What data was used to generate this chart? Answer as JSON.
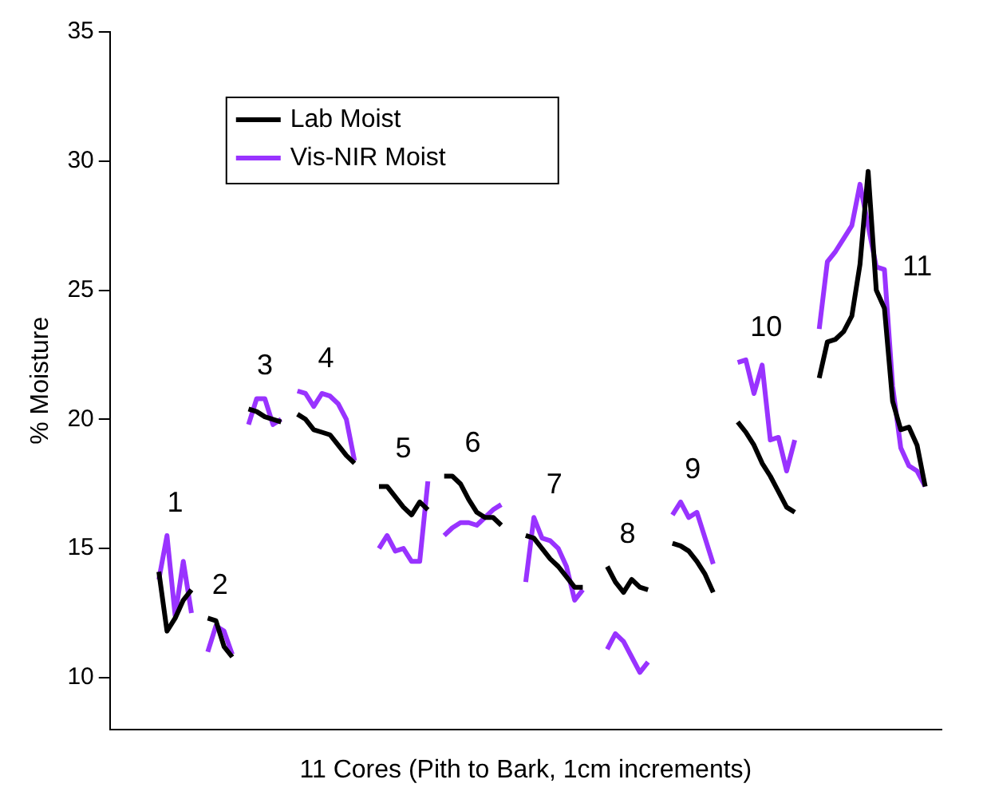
{
  "chart_data": {
    "type": "line",
    "xlabel": "11 Cores (Pith to Bark, 1cm increments)",
    "ylabel": "% Moisture",
    "categories": [
      null,
      null,
      null,
      null,
      null,
      null,
      null,
      null,
      null,
      null,
      null,
      null,
      null,
      null,
      null,
      null,
      null,
      null,
      null,
      null,
      null,
      null,
      null,
      null,
      null,
      null,
      null,
      null,
      null,
      null,
      null,
      null,
      null,
      null,
      null,
      null,
      null,
      null,
      null,
      null,
      null,
      null,
      null,
      null,
      null,
      null,
      null,
      null,
      null,
      null,
      null,
      null,
      null,
      null,
      null,
      null,
      null,
      null,
      null,
      null,
      null,
      null,
      null,
      null,
      null,
      null,
      null,
      null,
      null,
      null,
      null,
      null,
      null,
      null,
      null,
      null,
      null,
      null,
      null,
      null,
      null,
      null,
      null,
      null,
      null,
      null,
      null,
      null,
      null,
      null,
      null,
      null,
      null,
      null,
      null,
      null,
      null,
      null,
      null,
      null,
      null,
      null,
      null
    ],
    "series": [
      {
        "name": "Lab Moist",
        "color": "#000000",
        "values": [
          null,
          null,
          null,
          null,
          null,
          null,
          14.1,
          11.8,
          12.3,
          13.0,
          13.4,
          null,
          12.3,
          12.2,
          11.2,
          10.8,
          null,
          20.4,
          20.3,
          20.1,
          20.0,
          19.9,
          null,
          20.2,
          20.0,
          19.6,
          19.5,
          19.4,
          19.0,
          18.6,
          18.3,
          null,
          null,
          17.4,
          17.4,
          17.0,
          16.6,
          16.3,
          16.8,
          16.5,
          null,
          17.8,
          17.8,
          17.5,
          16.9,
          16.4,
          16.2,
          16.2,
          15.9,
          null,
          null,
          15.5,
          15.4,
          15.0,
          14.6,
          14.3,
          13.9,
          13.5,
          13.5,
          null,
          null,
          14.3,
          13.7,
          13.3,
          13.8,
          13.5,
          13.4,
          null,
          null,
          15.2,
          15.1,
          14.9,
          14.5,
          14.0,
          13.3,
          null,
          null,
          19.9,
          19.5,
          19.0,
          18.3,
          17.8,
          17.2,
          16.6,
          16.4,
          null,
          null,
          21.6,
          23.0,
          23.1,
          23.4,
          24.0,
          26.0,
          29.6,
          25.0,
          24.3,
          20.7,
          19.6,
          19.7,
          19.0,
          17.4,
          null,
          null
        ]
      },
      {
        "name": "Vis-NIR Moist",
        "color": "#9933ff",
        "values": [
          null,
          null,
          null,
          null,
          null,
          null,
          13.8,
          15.5,
          12.4,
          14.5,
          12.5,
          null,
          11.0,
          12.0,
          11.8,
          10.9,
          null,
          19.8,
          20.8,
          20.8,
          19.8,
          20.0,
          null,
          21.1,
          21.0,
          20.5,
          21.0,
          20.9,
          20.6,
          20.0,
          18.4,
          null,
          null,
          15.0,
          15.5,
          14.9,
          15.0,
          14.5,
          14.5,
          17.6,
          null,
          15.5,
          15.8,
          16.0,
          16.0,
          15.9,
          16.2,
          16.5,
          16.7,
          null,
          null,
          13.7,
          16.2,
          15.4,
          15.3,
          15.0,
          14.3,
          13.0,
          13.4,
          null,
          null,
          11.1,
          11.7,
          11.4,
          10.8,
          10.2,
          10.6,
          null,
          null,
          16.3,
          16.8,
          16.2,
          16.4,
          15.4,
          14.4,
          null,
          null,
          22.2,
          22.3,
          21.0,
          22.1,
          19.2,
          19.3,
          18.0,
          19.2,
          null,
          null,
          23.5,
          26.1,
          26.5,
          27.0,
          27.5,
          29.1,
          27.5,
          25.9,
          25.8,
          21.3,
          18.9,
          18.2,
          18.0,
          17.4,
          null,
          null
        ]
      }
    ],
    "annotations": [
      "1",
      "2",
      "3",
      "4",
      "5",
      "6",
      "7",
      "8",
      "9",
      "10",
      "11"
    ],
    "ylim": [
      8,
      35
    ],
    "yticks": [
      10,
      15,
      20,
      25,
      30,
      35
    ],
    "grid": false,
    "legend": "top left",
    "marker": "none",
    "line_style": "solid"
  }
}
